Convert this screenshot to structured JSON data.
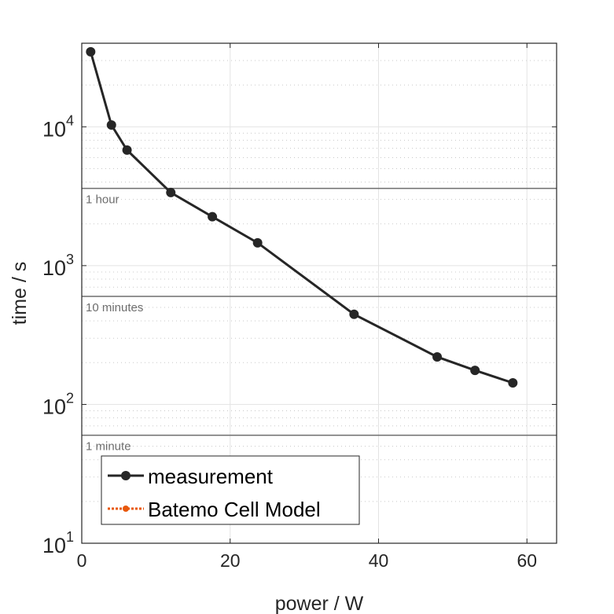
{
  "chart_data": {
    "type": "line",
    "title": "",
    "xlabel": "power / W",
    "ylabel": "time / s",
    "xlim": [
      0,
      64
    ],
    "ylim": [
      10,
      40000
    ],
    "yscale": "log",
    "grid": true,
    "xticks": [
      0,
      20,
      40,
      60
    ],
    "xtick_labels": [
      "0",
      "20",
      "40",
      "60"
    ],
    "yticks": [
      10,
      100,
      1000,
      10000
    ],
    "ytick_labels": [
      {
        "base": "10",
        "exp": "1"
      },
      {
        "base": "10",
        "exp": "2"
      },
      {
        "base": "10",
        "exp": "3"
      },
      {
        "base": "10",
        "exp": "4"
      }
    ],
    "series": [
      {
        "name": "measurement",
        "color": "#262626",
        "style": "solid-dot",
        "x": [
          1.2,
          4.0,
          6.1,
          12.0,
          17.6,
          23.7,
          36.7,
          47.9,
          53.0,
          58.1
        ],
        "y": [
          34700,
          10300,
          6800,
          3360,
          2250,
          1460,
          446,
          220,
          176,
          143
        ]
      },
      {
        "name": "Batemo Cell Model",
        "color": "#e8580c",
        "style": "dotted-dot",
        "x": [],
        "y": []
      }
    ],
    "reference_lines": [
      {
        "label": "1 hour",
        "y": 3600
      },
      {
        "label": "10 minutes",
        "y": 600
      },
      {
        "label": "1 minute",
        "y": 60
      }
    ],
    "legend_placement": "bottom-left"
  }
}
